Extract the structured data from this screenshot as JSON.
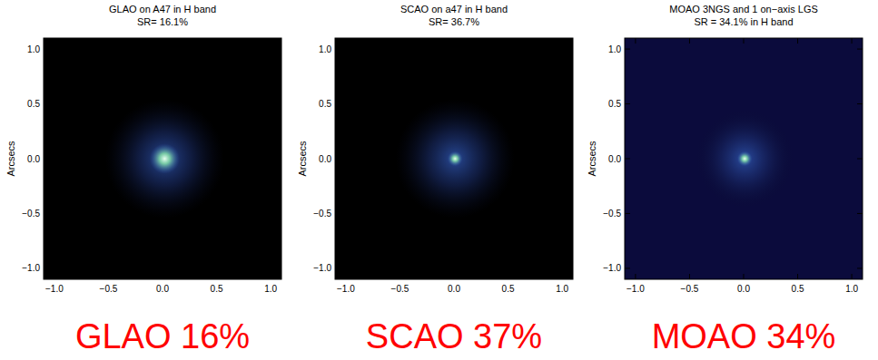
{
  "chart_data": [
    {
      "type": "image",
      "title": "GLAO on A47 in H band",
      "subtitle": "SR= 16.1%",
      "ylabel": "Arcsecs",
      "annotation": "GLAO 16%",
      "color": "#000000",
      "xlim": [
        -1.1,
        1.1
      ],
      "ylim": [
        -1.1,
        1.1
      ],
      "xticks": [
        {
          "value": -1,
          "label": "−1.0"
        },
        {
          "value": -0.5,
          "label": "−0.5"
        },
        {
          "value": 0,
          "label": "0.0"
        },
        {
          "value": 0.5,
          "label": "0.5"
        },
        {
          "value": 1,
          "label": "1.0"
        }
      ],
      "yticks": [
        {
          "value": -1,
          "label": "−1.0"
        },
        {
          "value": -0.5,
          "label": "−0.5"
        },
        {
          "value": 0,
          "label": "0.0"
        },
        {
          "value": 0.5,
          "label": "0.5"
        },
        {
          "value": 1,
          "label": "1.0"
        }
      ],
      "psf": {
        "x": 0.02,
        "y": 0.0,
        "core_fwhm": 0.14,
        "halo_radius": 0.55
      }
    },
    {
      "type": "image",
      "title": "SCAO on a47 in H band",
      "subtitle": "SR= 36.7%",
      "ylabel": "Arcsecs",
      "annotation": "SCAO 37%",
      "color": "#000000",
      "xlim": [
        -1.1,
        1.1
      ],
      "ylim": [
        -1.1,
        1.1
      ],
      "xticks": [
        {
          "value": -1,
          "label": "−1.0"
        },
        {
          "value": -0.5,
          "label": "−0.5"
        },
        {
          "value": 0,
          "label": "0.0"
        },
        {
          "value": 0.5,
          "label": "0.5"
        },
        {
          "value": 1,
          "label": "1.0"
        }
      ],
      "yticks": [
        {
          "value": -1,
          "label": "−1.0"
        },
        {
          "value": -0.5,
          "label": "−0.5"
        },
        {
          "value": 0,
          "label": "0.0"
        },
        {
          "value": 0.5,
          "label": "0.5"
        },
        {
          "value": 1,
          "label": "1.0"
        }
      ],
      "psf": {
        "x": 0.01,
        "y": 0.0,
        "core_fwhm": 0.07,
        "halo_radius": 0.55
      }
    },
    {
      "type": "image",
      "title": "MOAO 3NGS and 1 on−axis LGS",
      "subtitle": "SR = 34.1% in H band",
      "ylabel": "Arcsecs",
      "annotation": "MOAO 34%",
      "color": "#0b0b3c",
      "xlim": [
        -1.1,
        1.1
      ],
      "ylim": [
        -1.1,
        1.1
      ],
      "xticks": [
        {
          "value": -1,
          "label": "−1.0"
        },
        {
          "value": -0.5,
          "label": "−0.5"
        },
        {
          "value": 0,
          "label": "0.0"
        },
        {
          "value": 0.5,
          "label": "0.5"
        },
        {
          "value": 1,
          "label": "1.0"
        }
      ],
      "yticks": [
        {
          "value": -1,
          "label": "−1.0"
        },
        {
          "value": -0.5,
          "label": "−0.5"
        },
        {
          "value": 0,
          "label": "0.0"
        },
        {
          "value": 0.5,
          "label": "0.5"
        },
        {
          "value": 1,
          "label": "1.0"
        }
      ],
      "psf": {
        "x": 0.01,
        "y": 0.0,
        "core_fwhm": 0.07,
        "halo_radius": 0.45
      }
    }
  ]
}
